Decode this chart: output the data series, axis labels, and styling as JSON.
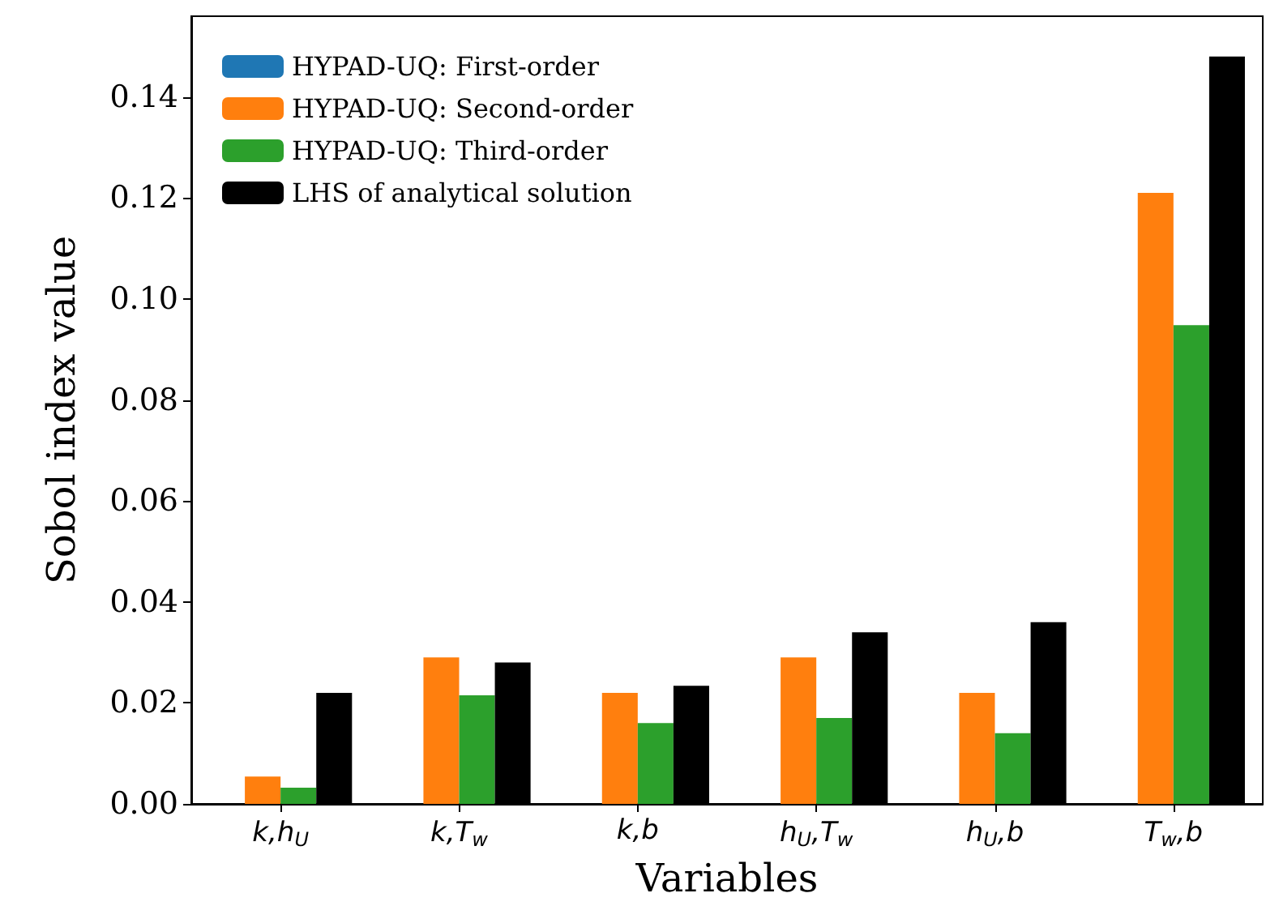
{
  "chart_data": {
    "type": "bar",
    "xlabel": "Variables",
    "ylabel": "Sobol index value",
    "categories": [
      "k,h$_{U}$",
      "k,T$_{w}$",
      "k,b",
      "h$_{U}$,T$_{w}$",
      "h$_{U}$,b",
      "T$_{w}$,b"
    ],
    "series": [
      {
        "name": "HYPAD-UQ: First-order",
        "color": "#1f77b4",
        "values": [
          0,
          0,
          0,
          0,
          0,
          0
        ]
      },
      {
        "name": "HYPAD-UQ: Second-order",
        "color": "#ff7f0e",
        "values": [
          0.0054,
          0.029,
          0.022,
          0.029,
          0.022,
          0.121
        ]
      },
      {
        "name": "HYPAD-UQ: Third-order",
        "color": "#2ca02c",
        "values": [
          0.0032,
          0.0215,
          0.016,
          0.017,
          0.014,
          0.0948
        ]
      },
      {
        "name": "LHS of analytical solution",
        "color": "#000000",
        "values": [
          0.022,
          0.028,
          0.0234,
          0.034,
          0.036,
          0.148
        ]
      }
    ],
    "ylim": [
      0,
      0.156
    ],
    "yticks": [
      {
        "value": 0,
        "label": "0.00"
      },
      {
        "value": 0.02,
        "label": "0.02"
      },
      {
        "value": 0.04,
        "label": "0.04"
      },
      {
        "value": 0.06,
        "label": "0.06"
      },
      {
        "value": 0.08,
        "label": "0.08"
      },
      {
        "value": 0.1,
        "label": "0.10"
      },
      {
        "value": 0.12,
        "label": "0.12"
      },
      {
        "value": 0.14,
        "label": "0.14"
      }
    ],
    "legend": "top left",
    "grid": false
  }
}
